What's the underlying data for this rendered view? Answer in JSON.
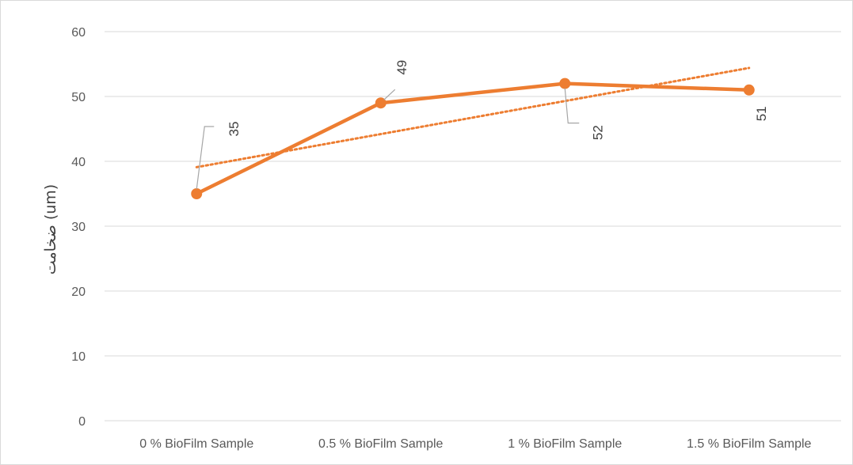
{
  "chart_data": {
    "type": "line",
    "title": "",
    "xlabel": "",
    "ylabel": "ضخامت (um)",
    "categories": [
      "0 % BioFilm Sample",
      "0.5 % BioFilm Sample",
      "1 % BioFilm Sample",
      "1.5 % BioFilm Sample"
    ],
    "series": [
      {
        "values": [
          35,
          49,
          52,
          51
        ],
        "data_labels": [
          "35",
          "49",
          "52",
          "51"
        ]
      }
    ],
    "trendline": {
      "type": "linear",
      "style": "dotted"
    },
    "ylim": [
      0,
      60
    ],
    "yticks": [
      0,
      10,
      20,
      30,
      40,
      50,
      60
    ],
    "yticklabels": [
      "0",
      "10",
      "20",
      "30",
      "40",
      "50",
      "60"
    ],
    "grid": true,
    "legend": "none",
    "colors": {
      "series": "#ED7D31",
      "grid": "#D9D9D9",
      "text": "#595959",
      "leader": "#A6A6A6"
    }
  }
}
